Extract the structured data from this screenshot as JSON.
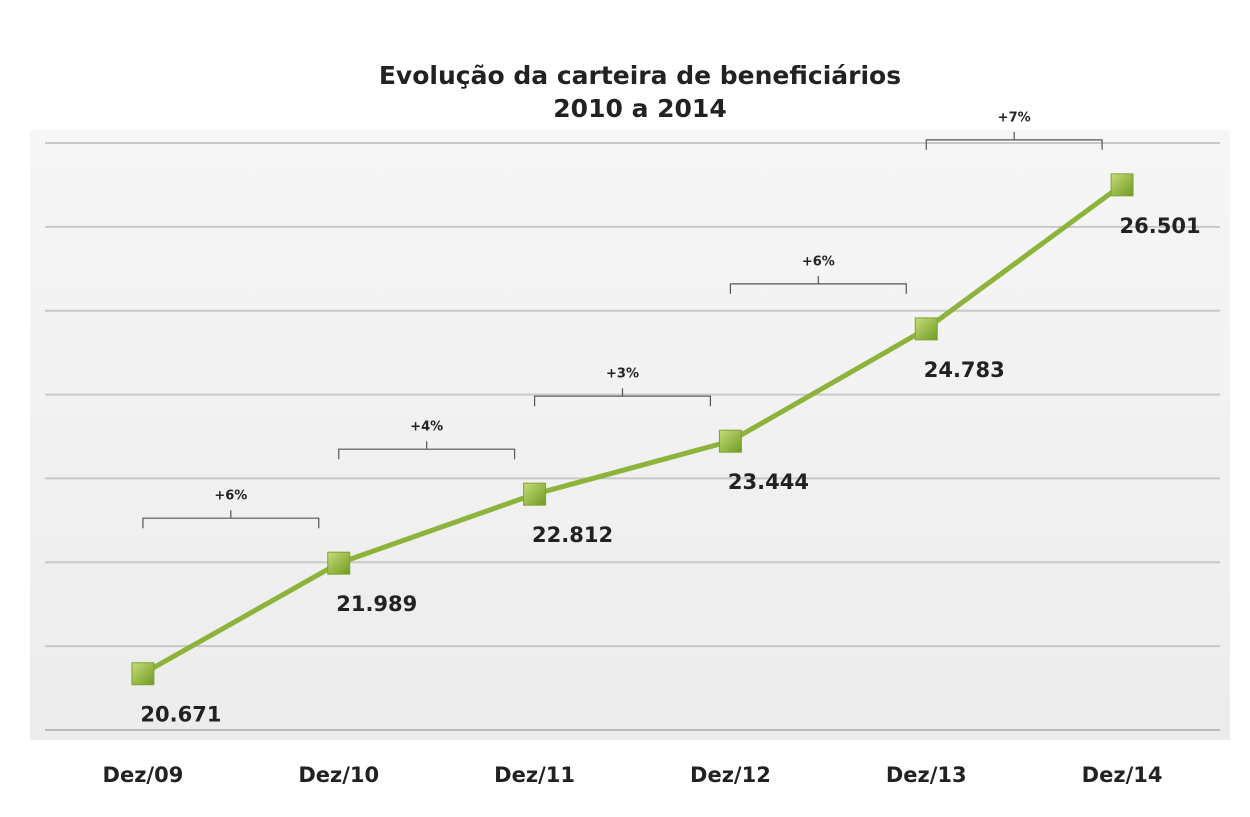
{
  "chart_data": {
    "type": "line",
    "title": [
      "Evolução da carteira de beneficiários",
      "2010 a 2014"
    ],
    "categories": [
      "Dez/09",
      "Dez/10",
      "Dez/11",
      "Dez/12",
      "Dez/13",
      "Dez/14"
    ],
    "series": [
      {
        "color": "#8db33a",
        "values": [
          20671,
          21989,
          22812,
          23444,
          24783,
          26501
        ],
        "value_labels": [
          "20.671",
          "21.989",
          "22.812",
          "23.444",
          "24.783",
          "26.501"
        ]
      }
    ],
    "annotations": [
      "+6%",
      "+4%",
      "+3%",
      "+6%",
      "+7%"
    ],
    "ylim": [
      20000,
      27000
    ],
    "yticks": [
      20000,
      21000,
      22000,
      23000,
      24000,
      25000,
      26000,
      27000
    ],
    "grid": true
  }
}
